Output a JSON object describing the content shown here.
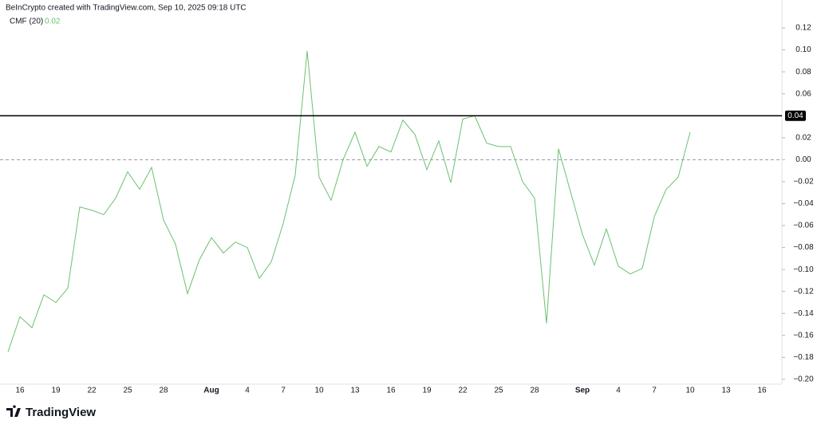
{
  "header": "BeInCrypto created with TradingView.com, Sep 10, 2025 09:18 UTC",
  "watermark": "TradingView",
  "chart_data": {
    "type": "line",
    "indicator": "CMF (20)",
    "legend_value": 0.02,
    "categories": [
      null,
      "16",
      null,
      null,
      "19",
      null,
      null,
      "22",
      null,
      null,
      "25",
      null,
      null,
      "28",
      null,
      null,
      null,
      "Aug",
      null,
      null,
      "4",
      null,
      null,
      "7",
      null,
      null,
      "10",
      null,
      null,
      "13",
      null,
      null,
      "16",
      null,
      null,
      "19",
      null,
      null,
      "22",
      null,
      null,
      "25",
      null,
      null,
      "28",
      null,
      null,
      null,
      "Sep",
      null,
      null,
      "4",
      null,
      null,
      "7",
      null,
      null,
      "10",
      null,
      null,
      "13",
      null,
      null,
      "16"
    ],
    "series": [
      {
        "name": "CMF (20)",
        "color": "#6cc070",
        "values": [
          -0.175,
          -0.143,
          -0.153,
          -0.123,
          -0.13,
          -0.117,
          -0.043,
          -0.046,
          -0.05,
          -0.035,
          -0.011,
          -0.027,
          -0.007,
          -0.055,
          -0.077,
          -0.122,
          -0.091,
          -0.071,
          -0.085,
          -0.075,
          -0.08,
          -0.108,
          -0.093,
          -0.058,
          -0.014,
          0.099,
          -0.016,
          -0.037,
          0.0,
          0.025,
          -0.006,
          0.012,
          0.007,
          0.036,
          0.023,
          -0.009,
          0.017,
          -0.021,
          0.037,
          0.04,
          0.015,
          0.012,
          0.012,
          -0.02,
          -0.035,
          -0.149,
          0.01,
          -0.029,
          -0.068,
          -0.096,
          -0.063,
          -0.097,
          -0.104,
          -0.099,
          -0.052,
          -0.027,
          -0.016,
          0.025,
          null,
          null,
          null,
          null,
          null,
          null
        ]
      }
    ],
    "ylim": [
      -0.2044,
      0.1396
    ],
    "yticks": [
      {
        "value": 0.12,
        "label": "0.12"
      },
      {
        "value": 0.1,
        "label": "0.10"
      },
      {
        "value": 0.08,
        "label": "0.08"
      },
      {
        "value": 0.06,
        "label": "0.06"
      },
      {
        "value": 0.02,
        "label": "0.02"
      },
      {
        "value": 0.0,
        "label": "0.00"
      },
      {
        "value": -0.02,
        "label": "−0.02"
      },
      {
        "value": -0.04,
        "label": "−0.04"
      },
      {
        "value": -0.06,
        "label": "−0.06"
      },
      {
        "value": -0.08,
        "label": "−0.08"
      },
      {
        "value": -0.1,
        "label": "−0.10"
      },
      {
        "value": -0.12,
        "label": "−0.12"
      },
      {
        "value": -0.14,
        "label": "−0.14"
      },
      {
        "value": -0.16,
        "label": "−0.16"
      },
      {
        "value": -0.18,
        "label": "−0.18"
      },
      {
        "value": -0.2,
        "label": "−0.20"
      }
    ],
    "zero_line": 0,
    "hline": {
      "value": 0.04,
      "color": "#000000"
    },
    "grid": false
  }
}
